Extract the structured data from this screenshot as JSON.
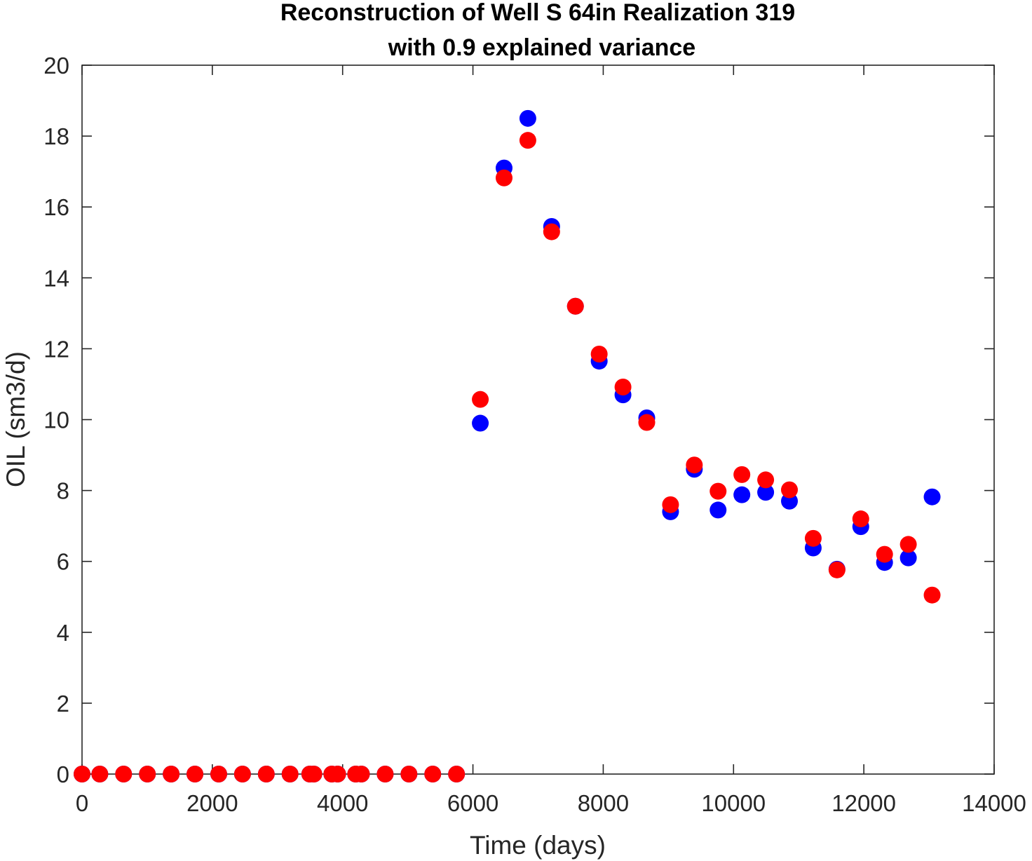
{
  "chart_data": {
    "type": "scatter",
    "title": "Reconstruction of Well S 64in Realization 319",
    "subtitle": "with 0.9 explained variance",
    "xlabel": "Time (days)",
    "ylabel": "OIL (sm3/d)",
    "xlim": [
      0,
      14000
    ],
    "ylim": [
      0,
      20
    ],
    "xticks": [
      0,
      2000,
      4000,
      6000,
      8000,
      10000,
      12000,
      14000
    ],
    "yticks": [
      0,
      2,
      4,
      6,
      8,
      10,
      12,
      14,
      16,
      18,
      20
    ],
    "grid": false,
    "legend": "none",
    "series": [
      {
        "color": "#0000ff",
        "x": [
          0,
          273,
          638,
          1003,
          1368,
          1733,
          2098,
          2463,
          2828,
          3193,
          3496,
          3558,
          3834,
          3923,
          4200,
          4288,
          4653,
          5018,
          5383,
          5748,
          6113,
          6478,
          6843,
          7208,
          7573,
          7938,
          8303,
          8668,
          9033,
          9398,
          9763,
          10128,
          10493,
          10858,
          11223,
          11588,
          11953,
          12318,
          12683,
          13048
        ],
        "y": [
          0,
          0,
          0,
          0,
          0,
          0,
          0,
          0,
          0,
          0,
          0,
          0,
          0,
          0,
          0,
          0,
          0,
          0,
          0,
          0,
          9.9,
          17.1,
          18.5,
          15.45,
          13.2,
          11.65,
          10.7,
          10.05,
          7.4,
          8.6,
          7.45,
          7.88,
          7.95,
          7.7,
          6.38,
          5.78,
          6.98,
          5.97,
          6.1,
          7.82
        ]
      },
      {
        "color": "#ff0000",
        "x": [
          0,
          273,
          638,
          1003,
          1368,
          1733,
          2098,
          2463,
          2828,
          3193,
          3496,
          3558,
          3834,
          3923,
          4200,
          4288,
          4653,
          5018,
          5383,
          5748,
          6113,
          6478,
          6843,
          7208,
          7573,
          7938,
          8303,
          8668,
          9033,
          9398,
          9763,
          10128,
          10493,
          10858,
          11223,
          11588,
          11953,
          12318,
          12683,
          13048
        ],
        "y": [
          0,
          0,
          0,
          0,
          0,
          0,
          0,
          0,
          0,
          0,
          0,
          0,
          0,
          0,
          0,
          0,
          0,
          0,
          0,
          0,
          10.57,
          16.82,
          17.88,
          15.3,
          13.2,
          11.85,
          10.92,
          9.92,
          7.6,
          8.72,
          7.98,
          8.45,
          8.3,
          8.02,
          6.65,
          5.76,
          7.2,
          6.2,
          6.48,
          5.05
        ]
      }
    ]
  }
}
